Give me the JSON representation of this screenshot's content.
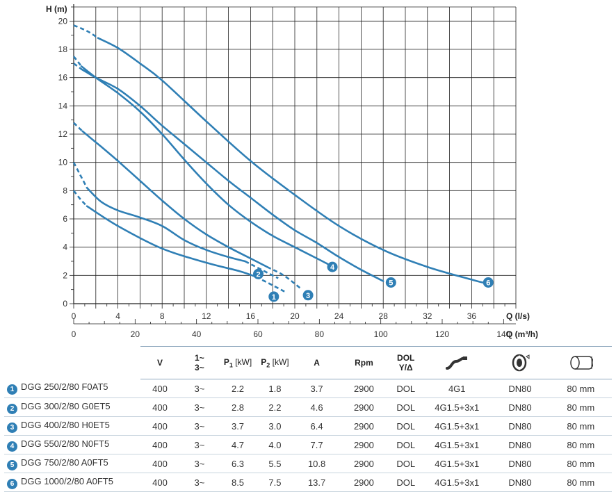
{
  "chart_data": {
    "type": "line",
    "ylabel": "H (m)",
    "xlabel": "Q (l/s)",
    "xlabel2": "Q (m³/h)",
    "xlim": [
      0,
      40
    ],
    "ylim": [
      0,
      21
    ],
    "x_ticks": [
      "0",
      "4",
      "8",
      "12",
      "16",
      "20",
      "24",
      "28",
      "32",
      "36"
    ],
    "x2_ticks": [
      "0",
      "20",
      "40",
      "60",
      "80",
      "100",
      "120",
      "140"
    ],
    "y_ticks": [
      "0",
      "2",
      "4",
      "6",
      "8",
      "10",
      "12",
      "14",
      "16",
      "18",
      "20"
    ],
    "grid": true,
    "color": "#2f7fb5",
    "series": [
      {
        "label": "1",
        "dashed_start": [
          [
            0,
            8.0
          ],
          [
            0.6,
            7.4
          ],
          [
            1.2,
            6.9
          ]
        ],
        "solid": [
          [
            1.2,
            6.9
          ],
          [
            4,
            5.5
          ],
          [
            8,
            3.9
          ],
          [
            12,
            2.9
          ],
          [
            15,
            2.3
          ],
          [
            16.5,
            1.9
          ]
        ],
        "dashed_end": [
          [
            16.5,
            1.9
          ],
          [
            18,
            1.3
          ],
          [
            19.2,
            0.8
          ]
        ],
        "marker": [
          18.1,
          0.5
        ]
      },
      {
        "label": "2",
        "dashed_start": [
          [
            0,
            10.0
          ],
          [
            0.6,
            9.1
          ],
          [
            1.2,
            8.2
          ]
        ],
        "solid": [
          [
            1.2,
            8.2
          ],
          [
            2.5,
            7.2
          ],
          [
            4,
            6.6
          ],
          [
            6,
            6.1
          ],
          [
            8,
            5.5
          ],
          [
            10,
            4.5
          ],
          [
            12,
            3.8
          ],
          [
            14,
            3.3
          ],
          [
            15.5,
            3.0
          ]
        ],
        "dashed_end": [
          [
            15.5,
            3.0
          ],
          [
            17,
            2.4
          ],
          [
            18.5,
            1.8
          ]
        ],
        "marker": [
          16.7,
          2.1
        ]
      },
      {
        "label": "3",
        "dashed_start": [
          [
            0,
            12.8
          ],
          [
            0.8,
            12.2
          ]
        ],
        "solid": [
          [
            0.8,
            12.2
          ],
          [
            2.5,
            11.1
          ],
          [
            4,
            10.1
          ],
          [
            6,
            8.7
          ],
          [
            8,
            7.3
          ],
          [
            10,
            6.0
          ],
          [
            12,
            4.9
          ],
          [
            14,
            4.0
          ],
          [
            16,
            3.2
          ],
          [
            17.5,
            2.6
          ]
        ],
        "dashed_end": [
          [
            17.5,
            2.6
          ],
          [
            19,
            2.0
          ],
          [
            20.5,
            1.1
          ]
        ],
        "marker": [
          21.2,
          0.6
        ]
      },
      {
        "label": "4",
        "dashed_start": [
          [
            0,
            17.5
          ],
          [
            0.7,
            16.8
          ]
        ],
        "solid": [
          [
            0.7,
            16.8
          ],
          [
            2,
            16.0
          ],
          [
            4,
            14.9
          ],
          [
            6,
            13.6
          ],
          [
            8,
            12.0
          ],
          [
            10,
            10.2
          ],
          [
            12,
            8.5
          ],
          [
            14,
            7.0
          ],
          [
            16,
            5.8
          ],
          [
            18,
            4.8
          ],
          [
            20,
            4.0
          ],
          [
            22,
            3.2
          ],
          [
            23,
            2.8
          ]
        ],
        "dashed_end": [],
        "marker": [
          23.4,
          2.6
        ]
      },
      {
        "label": "5",
        "dashed_start": [
          [
            0,
            17.0
          ],
          [
            0.7,
            16.6
          ]
        ],
        "solid": [
          [
            0.7,
            16.6
          ],
          [
            2,
            16.0
          ],
          [
            4,
            15.2
          ],
          [
            6,
            14.0
          ],
          [
            8,
            12.6
          ],
          [
            10,
            11.3
          ],
          [
            12,
            10.0
          ],
          [
            14,
            8.7
          ],
          [
            16,
            7.5
          ],
          [
            18,
            6.3
          ],
          [
            20,
            5.2
          ],
          [
            22,
            4.3
          ],
          [
            24,
            3.3
          ],
          [
            26,
            2.4
          ],
          [
            28,
            1.6
          ]
        ],
        "dashed_end": [],
        "marker": [
          28.7,
          1.5
        ]
      },
      {
        "label": "6",
        "dashed_start": [
          [
            0,
            19.7
          ],
          [
            1.2,
            19.3
          ],
          [
            2.2,
            18.8
          ]
        ],
        "solid": [
          [
            2.2,
            18.8
          ],
          [
            4,
            18.1
          ],
          [
            6,
            17.0
          ],
          [
            8,
            15.8
          ],
          [
            12,
            12.9
          ],
          [
            16,
            10.1
          ],
          [
            20,
            7.7
          ],
          [
            24,
            5.5
          ],
          [
            28,
            3.8
          ],
          [
            32,
            2.6
          ],
          [
            36,
            1.7
          ],
          [
            37,
            1.5
          ]
        ],
        "dashed_end": [],
        "marker": [
          37.5,
          1.5
        ]
      }
    ]
  },
  "table": {
    "headers": {
      "v": "V",
      "phase": [
        "1~",
        "3~"
      ],
      "p1": "P",
      "p1_sub": "1",
      "p1_unit": " [kW]",
      "p2": "P",
      "p2_sub": "2",
      "p2_unit": " [kW]",
      "a": "A",
      "rpm": "Rpm",
      "dol": [
        "DOL",
        "Y/Δ"
      ]
    },
    "icons": [
      "cable-icon",
      "flange-icon",
      "pipe-diameter-icon"
    ],
    "rows": [
      {
        "num": "1",
        "model": "DGG 250/2/80 F0AT5",
        "v": "400",
        "phase": "3~",
        "p1": "2.2",
        "p2": "1.8",
        "a": "3.7",
        "rpm": "2900",
        "dol": "DOL",
        "cable": "4G1",
        "flange": "DN80",
        "dia": "80 mm"
      },
      {
        "num": "2",
        "model": "DGG 300/2/80 G0ET5",
        "v": "400",
        "phase": "3~",
        "p1": "2.8",
        "p2": "2.2",
        "a": "4.6",
        "rpm": "2900",
        "dol": "DOL",
        "cable": "4G1.5+3x1",
        "flange": "DN80",
        "dia": "80 mm"
      },
      {
        "num": "3",
        "model": "DGG 400/2/80 H0ET5",
        "v": "400",
        "phase": "3~",
        "p1": "3.7",
        "p2": "3.0",
        "a": "6.4",
        "rpm": "2900",
        "dol": "DOL",
        "cable": "4G1.5+3x1",
        "flange": "DN80",
        "dia": "80 mm"
      },
      {
        "num": "4",
        "model": "DGG 550/2/80 N0FT5",
        "v": "400",
        "phase": "3~",
        "p1": "4.7",
        "p2": "4.0",
        "a": "7.7",
        "rpm": "2900",
        "dol": "DOL",
        "cable": "4G1.5+3x1",
        "flange": "DN80",
        "dia": "80 mm"
      },
      {
        "num": "5",
        "model": "DGG 750/2/80 A0FT5",
        "v": "400",
        "phase": "3~",
        "p1": "6.3",
        "p2": "5.5",
        "a": "10.8",
        "rpm": "2900",
        "dol": "DOL",
        "cable": "4G1.5+3x1",
        "flange": "DN80",
        "dia": "80 mm"
      },
      {
        "num": "6",
        "model": "DGG 1000/2/80 A0FT5",
        "v": "400",
        "phase": "3~",
        "p1": "8.5",
        "p2": "7.5",
        "a": "13.7",
        "rpm": "2900",
        "dol": "DOL",
        "cable": "4G1.5+3x1",
        "flange": "DN80",
        "dia": "80 mm"
      }
    ]
  }
}
